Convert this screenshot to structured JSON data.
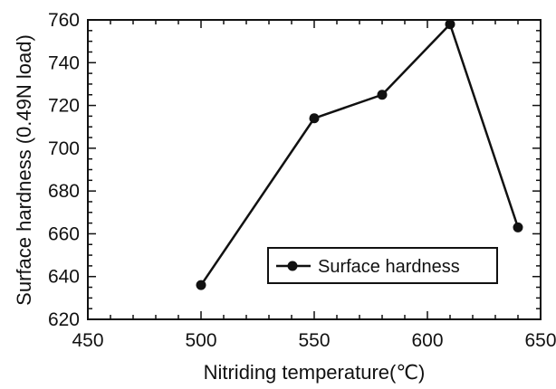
{
  "chart_data": {
    "type": "line",
    "title": "",
    "xlabel": "Nitriding temperature(℃)",
    "ylabel": "Surface hardness (0.49N load)",
    "xlim": [
      450,
      650
    ],
    "ylim": [
      620,
      760
    ],
    "x_ticks": [
      450,
      500,
      550,
      600,
      650
    ],
    "y_ticks": [
      620,
      640,
      660,
      680,
      700,
      720,
      740,
      760
    ],
    "x_tick_labels": [
      "450",
      "500",
      "550",
      "600",
      "650"
    ],
    "y_tick_labels": [
      "620",
      "640",
      "660",
      "680",
      "700",
      "720",
      "740",
      "760"
    ],
    "grid": false,
    "legend_position": "lower-right",
    "series": [
      {
        "name": "Surface hardness",
        "color": "#111111",
        "marker": "filled-circle",
        "x": [
          500,
          550,
          580,
          610,
          640
        ],
        "y": [
          636,
          714,
          725,
          758,
          663
        ]
      }
    ]
  }
}
